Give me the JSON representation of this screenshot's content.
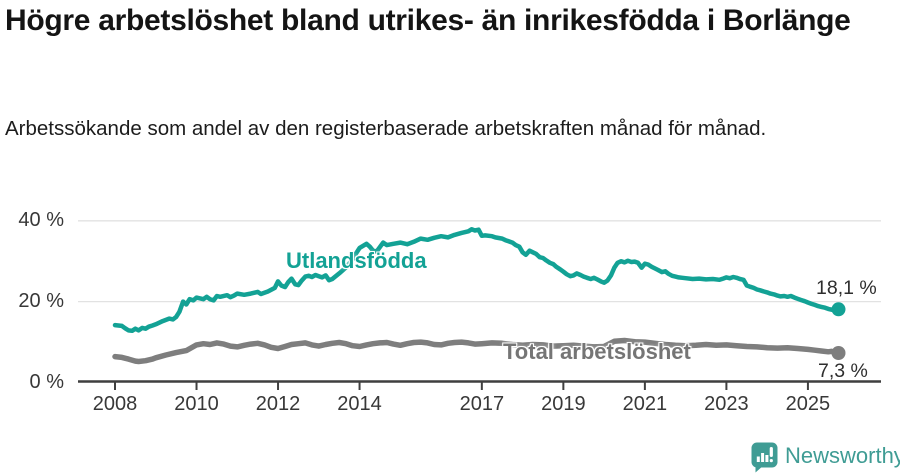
{
  "header": {
    "title": "Högre arbetslöshet bland utrikes- än inrikesfödda i Borlänge",
    "subtitle": "Arbetssökande som andel av den registerbaserade arbetskraften månad för månad."
  },
  "footer": {
    "brand": "Newsworthy",
    "logo_icon": "bar-chart-speech-bubble"
  },
  "colors": {
    "accent_teal": "#13a295",
    "line_gray": "#7e7e7e",
    "label_gray": "#757575",
    "logo_teal": "#3f9c94",
    "axis": "#3f3f3f",
    "grid": "#e2e2e2",
    "tick_text": "#383838",
    "title_text": "#141414"
  },
  "chart_data": {
    "type": "line",
    "title": "Högre arbetslöshet bland utrikes- än inrikesfödda i Borlänge",
    "subtitle": "Arbetssökande som andel av den registerbaserade arbetskraften månad för månad.",
    "unit": "%",
    "x_range": [
      2008,
      2025.75
    ],
    "ylim": [
      0,
      44
    ],
    "grid": "horizontal-only",
    "legend_position": "inline-labels",
    "x_ticks": [
      2008,
      2010,
      2012,
      2014,
      2017,
      2019,
      2021,
      2023,
      2025
    ],
    "y_ticks": [
      {
        "value": 0,
        "label": "0 %"
      },
      {
        "value": 20,
        "label": "20 %"
      },
      {
        "value": 40,
        "label": "40 %"
      }
    ],
    "series": [
      {
        "name": "Utlandsfödda",
        "color": "#13a295",
        "width": 4.5,
        "end_label": "18,1 %",
        "end_value": 18.1,
        "points": [
          [
            2008.0,
            14.2
          ],
          [
            2008.08,
            14.1
          ],
          [
            2008.17,
            14.0
          ],
          [
            2008.25,
            13.4
          ],
          [
            2008.33,
            12.9
          ],
          [
            2008.42,
            12.8
          ],
          [
            2008.5,
            13.3
          ],
          [
            2008.58,
            12.9
          ],
          [
            2008.67,
            13.5
          ],
          [
            2008.75,
            13.3
          ],
          [
            2008.83,
            13.8
          ],
          [
            2008.92,
            14.1
          ],
          [
            2009.0,
            14.4
          ],
          [
            2009.17,
            15.2
          ],
          [
            2009.33,
            15.8
          ],
          [
            2009.42,
            15.6
          ],
          [
            2009.5,
            16.2
          ],
          [
            2009.58,
            17.5
          ],
          [
            2009.67,
            20.0
          ],
          [
            2009.75,
            19.3
          ],
          [
            2009.83,
            20.6
          ],
          [
            2009.92,
            20.3
          ],
          [
            2010.0,
            21.0
          ],
          [
            2010.17,
            20.6
          ],
          [
            2010.25,
            21.2
          ],
          [
            2010.33,
            20.6
          ],
          [
            2010.42,
            20.3
          ],
          [
            2010.5,
            21.4
          ],
          [
            2010.58,
            21.2
          ],
          [
            2010.75,
            21.6
          ],
          [
            2010.83,
            21.1
          ],
          [
            2010.92,
            21.5
          ],
          [
            2011.0,
            22.0
          ],
          [
            2011.17,
            21.7
          ],
          [
            2011.33,
            22.0
          ],
          [
            2011.5,
            22.4
          ],
          [
            2011.58,
            21.9
          ],
          [
            2011.75,
            22.5
          ],
          [
            2011.92,
            23.4
          ],
          [
            2012.0,
            25.0
          ],
          [
            2012.08,
            24.0
          ],
          [
            2012.17,
            23.6
          ],
          [
            2012.25,
            24.8
          ],
          [
            2012.33,
            25.7
          ],
          [
            2012.42,
            24.3
          ],
          [
            2012.5,
            24.1
          ],
          [
            2012.58,
            25.2
          ],
          [
            2012.67,
            26.2
          ],
          [
            2012.75,
            26.4
          ],
          [
            2012.83,
            26.1
          ],
          [
            2012.92,
            26.6
          ],
          [
            2013.0,
            26.3
          ],
          [
            2013.08,
            26.0
          ],
          [
            2013.17,
            26.5
          ],
          [
            2013.25,
            25.3
          ],
          [
            2013.33,
            25.6
          ],
          [
            2013.5,
            27.0
          ],
          [
            2013.67,
            28.5
          ],
          [
            2013.83,
            30.5
          ],
          [
            2013.92,
            32.0
          ],
          [
            2014.0,
            33.3
          ],
          [
            2014.17,
            34.3
          ],
          [
            2014.25,
            33.6
          ],
          [
            2014.33,
            32.6
          ],
          [
            2014.42,
            32.4
          ],
          [
            2014.5,
            33.5
          ],
          [
            2014.58,
            34.6
          ],
          [
            2014.67,
            34.0
          ],
          [
            2014.83,
            34.3
          ],
          [
            2015.0,
            34.6
          ],
          [
            2015.17,
            34.2
          ],
          [
            2015.33,
            34.8
          ],
          [
            2015.5,
            35.6
          ],
          [
            2015.67,
            35.3
          ],
          [
            2015.83,
            35.8
          ],
          [
            2016.0,
            36.2
          ],
          [
            2016.17,
            35.9
          ],
          [
            2016.33,
            36.5
          ],
          [
            2016.5,
            37.0
          ],
          [
            2016.67,
            37.4
          ],
          [
            2016.75,
            37.9
          ],
          [
            2016.83,
            37.6
          ],
          [
            2016.92,
            37.8
          ],
          [
            2017.0,
            36.3
          ],
          [
            2017.08,
            36.4
          ],
          [
            2017.25,
            36.2
          ],
          [
            2017.33,
            35.9
          ],
          [
            2017.5,
            35.6
          ],
          [
            2017.58,
            35.2
          ],
          [
            2017.75,
            34.6
          ],
          [
            2017.83,
            34.0
          ],
          [
            2017.92,
            33.6
          ],
          [
            2018.0,
            32.2
          ],
          [
            2018.08,
            31.6
          ],
          [
            2018.17,
            32.6
          ],
          [
            2018.25,
            32.2
          ],
          [
            2018.33,
            31.8
          ],
          [
            2018.42,
            31.0
          ],
          [
            2018.5,
            30.8
          ],
          [
            2018.58,
            30.2
          ],
          [
            2018.67,
            29.6
          ],
          [
            2018.75,
            29.3
          ],
          [
            2018.83,
            28.6
          ],
          [
            2018.92,
            28.0
          ],
          [
            2019.0,
            27.4
          ],
          [
            2019.08,
            26.8
          ],
          [
            2019.17,
            26.3
          ],
          [
            2019.25,
            26.5
          ],
          [
            2019.33,
            27.0
          ],
          [
            2019.42,
            26.6
          ],
          [
            2019.5,
            26.2
          ],
          [
            2019.58,
            25.9
          ],
          [
            2019.67,
            25.6
          ],
          [
            2019.75,
            25.9
          ],
          [
            2019.83,
            25.5
          ],
          [
            2019.92,
            25.0
          ],
          [
            2020.0,
            24.7
          ],
          [
            2020.08,
            25.2
          ],
          [
            2020.17,
            26.5
          ],
          [
            2020.25,
            28.4
          ],
          [
            2020.33,
            29.6
          ],
          [
            2020.42,
            30.0
          ],
          [
            2020.5,
            29.7
          ],
          [
            2020.58,
            30.1
          ],
          [
            2020.67,
            29.8
          ],
          [
            2020.75,
            29.9
          ],
          [
            2020.83,
            29.6
          ],
          [
            2020.92,
            28.4
          ],
          [
            2021.0,
            29.4
          ],
          [
            2021.08,
            29.2
          ],
          [
            2021.17,
            28.6
          ],
          [
            2021.25,
            28.2
          ],
          [
            2021.33,
            27.8
          ],
          [
            2021.42,
            27.3
          ],
          [
            2021.5,
            27.5
          ],
          [
            2021.58,
            26.9
          ],
          [
            2021.67,
            26.4
          ],
          [
            2021.75,
            26.2
          ],
          [
            2021.83,
            26.0
          ],
          [
            2021.92,
            25.9
          ],
          [
            2022.0,
            25.8
          ],
          [
            2022.17,
            25.6
          ],
          [
            2022.33,
            25.7
          ],
          [
            2022.5,
            25.5
          ],
          [
            2022.67,
            25.6
          ],
          [
            2022.83,
            25.4
          ],
          [
            2022.92,
            25.7
          ],
          [
            2023.0,
            26.0
          ],
          [
            2023.08,
            25.8
          ],
          [
            2023.17,
            26.1
          ],
          [
            2023.25,
            25.9
          ],
          [
            2023.33,
            25.6
          ],
          [
            2023.42,
            25.4
          ],
          [
            2023.5,
            24.0
          ],
          [
            2023.58,
            23.7
          ],
          [
            2023.67,
            23.4
          ],
          [
            2023.75,
            23.0
          ],
          [
            2023.83,
            22.8
          ],
          [
            2023.92,
            22.5
          ],
          [
            2024.0,
            22.3
          ],
          [
            2024.08,
            22.0
          ],
          [
            2024.17,
            21.8
          ],
          [
            2024.25,
            21.5
          ],
          [
            2024.33,
            21.3
          ],
          [
            2024.42,
            21.4
          ],
          [
            2024.5,
            21.2
          ],
          [
            2024.58,
            21.4
          ],
          [
            2024.67,
            21.0
          ],
          [
            2024.75,
            20.7
          ],
          [
            2024.83,
            20.4
          ],
          [
            2024.92,
            20.1
          ],
          [
            2025.0,
            19.8
          ],
          [
            2025.08,
            19.5
          ],
          [
            2025.17,
            19.2
          ],
          [
            2025.25,
            18.9
          ],
          [
            2025.33,
            18.7
          ],
          [
            2025.42,
            18.5
          ],
          [
            2025.5,
            18.2
          ],
          [
            2025.58,
            18.0
          ],
          [
            2025.67,
            18.3
          ],
          [
            2025.75,
            18.1
          ]
        ]
      },
      {
        "name": "Total arbetslöshet",
        "color": "#7e7e7e",
        "width": 5.5,
        "end_label": "7,3 %",
        "end_value": 7.3,
        "points": [
          [
            2008.0,
            6.4
          ],
          [
            2008.17,
            6.2
          ],
          [
            2008.33,
            5.8
          ],
          [
            2008.5,
            5.3
          ],
          [
            2008.58,
            5.2
          ],
          [
            2008.75,
            5.4
          ],
          [
            2008.92,
            5.8
          ],
          [
            2009.0,
            6.1
          ],
          [
            2009.25,
            6.8
          ],
          [
            2009.5,
            7.4
          ],
          [
            2009.75,
            7.9
          ],
          [
            2010.0,
            9.3
          ],
          [
            2010.17,
            9.6
          ],
          [
            2010.33,
            9.4
          ],
          [
            2010.5,
            9.8
          ],
          [
            2010.67,
            9.5
          ],
          [
            2010.83,
            9.0
          ],
          [
            2011.0,
            8.8
          ],
          [
            2011.17,
            9.2
          ],
          [
            2011.33,
            9.5
          ],
          [
            2011.5,
            9.7
          ],
          [
            2011.67,
            9.3
          ],
          [
            2011.83,
            8.7
          ],
          [
            2012.0,
            8.4
          ],
          [
            2012.17,
            8.9
          ],
          [
            2012.33,
            9.4
          ],
          [
            2012.5,
            9.6
          ],
          [
            2012.67,
            9.8
          ],
          [
            2012.83,
            9.3
          ],
          [
            2013.0,
            9.0
          ],
          [
            2013.17,
            9.4
          ],
          [
            2013.33,
            9.7
          ],
          [
            2013.5,
            9.9
          ],
          [
            2013.67,
            9.6
          ],
          [
            2013.83,
            9.1
          ],
          [
            2014.0,
            8.9
          ],
          [
            2014.17,
            9.3
          ],
          [
            2014.33,
            9.6
          ],
          [
            2014.5,
            9.8
          ],
          [
            2014.67,
            9.9
          ],
          [
            2014.83,
            9.5
          ],
          [
            2015.0,
            9.2
          ],
          [
            2015.17,
            9.6
          ],
          [
            2015.33,
            9.9
          ],
          [
            2015.5,
            10.0
          ],
          [
            2015.67,
            9.8
          ],
          [
            2015.83,
            9.4
          ],
          [
            2016.0,
            9.3
          ],
          [
            2016.17,
            9.7
          ],
          [
            2016.33,
            9.9
          ],
          [
            2016.5,
            10.0
          ],
          [
            2016.67,
            9.8
          ],
          [
            2016.83,
            9.5
          ],
          [
            2017.0,
            9.6
          ],
          [
            2017.25,
            9.8
          ],
          [
            2017.5,
            9.7
          ],
          [
            2017.75,
            9.4
          ],
          [
            2018.0,
            9.2
          ],
          [
            2018.25,
            9.4
          ],
          [
            2018.5,
            9.3
          ],
          [
            2018.75,
            9.0
          ],
          [
            2019.0,
            9.1
          ],
          [
            2019.25,
            9.2
          ],
          [
            2019.5,
            9.0
          ],
          [
            2019.75,
            8.8
          ],
          [
            2020.0,
            8.9
          ],
          [
            2020.25,
            10.2
          ],
          [
            2020.5,
            10.4
          ],
          [
            2020.75,
            10.1
          ],
          [
            2021.0,
            10.0
          ],
          [
            2021.25,
            9.7
          ],
          [
            2021.5,
            9.4
          ],
          [
            2021.75,
            9.2
          ],
          [
            2022.0,
            9.1
          ],
          [
            2022.25,
            9.2
          ],
          [
            2022.5,
            9.4
          ],
          [
            2022.75,
            9.2
          ],
          [
            2023.0,
            9.3
          ],
          [
            2023.25,
            9.1
          ],
          [
            2023.5,
            8.9
          ],
          [
            2023.75,
            8.8
          ],
          [
            2024.0,
            8.6
          ],
          [
            2024.25,
            8.5
          ],
          [
            2024.5,
            8.6
          ],
          [
            2024.75,
            8.4
          ],
          [
            2025.0,
            8.2
          ],
          [
            2025.17,
            8.0
          ],
          [
            2025.33,
            7.8
          ],
          [
            2025.5,
            7.6
          ],
          [
            2025.58,
            7.7
          ],
          [
            2025.67,
            7.4
          ],
          [
            2025.75,
            7.3
          ]
        ]
      }
    ]
  }
}
